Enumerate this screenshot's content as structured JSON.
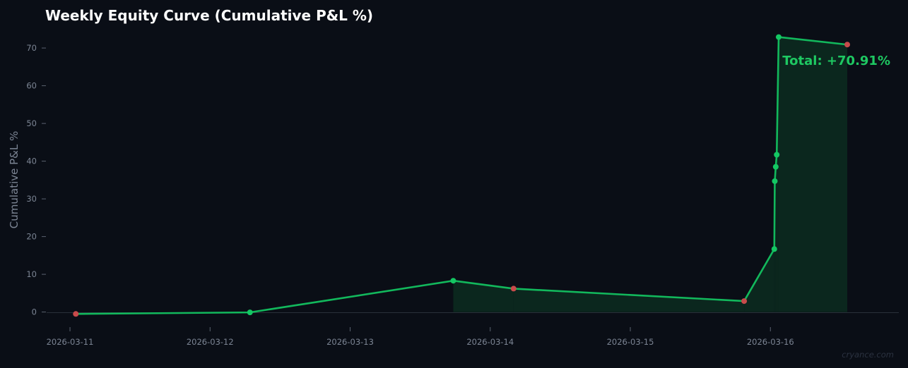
{
  "chart_data": {
    "type": "line",
    "title": "Weekly Equity Curve (Cumulative P&L %)",
    "xlabel": "",
    "ylabel": "Cumulative P&L %",
    "x_ticks": [
      "2026-03-11",
      "2026-03-12",
      "2026-03-13",
      "2026-03-14",
      "2026-03-15",
      "2026-03-16"
    ],
    "y_ticks": [
      0,
      10,
      20,
      30,
      40,
      50,
      60,
      70
    ],
    "xlim": [
      "2026-03-10 20:00",
      "2026-03-16 22:00"
    ],
    "ylim": [
      -4,
      76
    ],
    "grid": false,
    "annotation": "Total: +70.91%",
    "watermark": "cryance.com",
    "colors": {
      "line": "#12b85c",
      "win": "#14c763",
      "loss": "#c84b4b",
      "fill": "#0c2b20",
      "background": "#0a0e16"
    },
    "series": [
      {
        "points": [
          {
            "x": "2026-03-11 01:00",
            "y": -0.5,
            "result": "loss"
          },
          {
            "x": "2026-03-12 06:50",
            "y": -0.1,
            "result": "win"
          },
          {
            "x": "2026-03-13 17:40",
            "y": 8.3,
            "result": "win"
          },
          {
            "x": "2026-03-14 04:00",
            "y": 6.2,
            "result": "loss"
          },
          {
            "x": "2026-03-15 19:30",
            "y": 2.9,
            "result": "loss"
          },
          {
            "x": "2026-03-16 00:40",
            "y": 16.7,
            "result": "win"
          },
          {
            "x": "2026-03-16 00:45",
            "y": 34.7,
            "result": "win"
          },
          {
            "x": "2026-03-16 00:55",
            "y": 38.5,
            "result": "win"
          },
          {
            "x": "2026-03-16 01:05",
            "y": 41.7,
            "result": "win"
          },
          {
            "x": "2026-03-16 01:25",
            "y": 72.9,
            "result": "win"
          },
          {
            "x": "2026-03-16 13:10",
            "y": 70.91,
            "result": "loss"
          }
        ]
      }
    ]
  }
}
